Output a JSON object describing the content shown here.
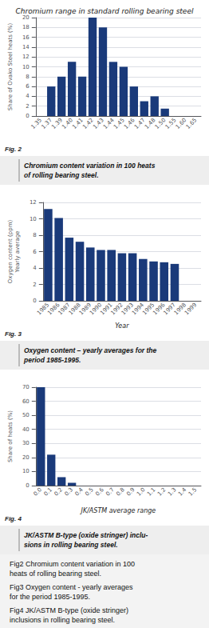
{
  "chart_data": [
    {
      "type": "bar",
      "title": "Chromium range in standard rolling bearing steel",
      "ylabel": "Share of Ovako Steel heats (%)",
      "categories": [
        "1.35",
        "1.37",
        "1.39",
        "1.40",
        "1.41",
        "1.42",
        "1.43",
        "1.44",
        "1.45",
        "1.46",
        "1.47",
        "1.48",
        "1.50",
        "1.55",
        "1.60",
        "1.65"
      ],
      "values": [
        0,
        6,
        8,
        11,
        8,
        20,
        18,
        11,
        10,
        6,
        3,
        4,
        1.5,
        0,
        0,
        0
      ],
      "color": "#1a3a7a",
      "ylim": [
        0,
        20
      ],
      "yticks": [
        0,
        2,
        4,
        6,
        8,
        10,
        12,
        14,
        16,
        18,
        20
      ],
      "grid": true,
      "annotations": [
        "Fig. 2",
        "Chromium content variation in 100 heats\nof rolling bearing steel.",
        "Fig2 Chromium content variation in 100\nheats of rolling bearing steel."
      ]
    },
    {
      "type": "bar",
      "ylabel": "Oxygen content (ppm)\nYearly average",
      "xlabel": "Year",
      "categories": [
        "1985",
        "1986",
        "1987",
        "1988",
        "1989",
        "1990",
        "1991",
        "1992",
        "1993",
        "1994",
        "1995",
        "1996",
        "1997",
        "1998",
        "1999"
      ],
      "values": [
        11.2,
        10.1,
        7.7,
        7.2,
        6.5,
        6.2,
        6.2,
        5.8,
        5.8,
        5.1,
        4.8,
        4.7,
        4.5,
        0,
        0
      ],
      "color": "#1a3a7a",
      "ylim": [
        0,
        12
      ],
      "yticks": [
        0,
        2,
        4,
        6,
        8,
        10,
        12
      ],
      "grid": true,
      "annotations": [
        "Fig. 3",
        "Oxygen content – yearly averages for the\nperiod 1985-1995.",
        "Fig3 Oxygen content - yearly averages\nfor the period 1985-1995."
      ]
    },
    {
      "type": "bar",
      "ylabel": "Share of heats (%)",
      "xlabel": "JK/ASTM average range",
      "categories": [
        "0.0",
        "0.1",
        "0.2",
        "0.3",
        "0.4",
        "0.5",
        "0.6",
        "0.7",
        "0.8",
        "0.9",
        "1.0",
        "1.1",
        "1.2",
        "1.3",
        "1.4",
        "1.5"
      ],
      "values": [
        70,
        22,
        6,
        2,
        0,
        0,
        0,
        0,
        0,
        0,
        0,
        0,
        0,
        0,
        0,
        0
      ],
      "color": "#1a3a7a",
      "ylim": [
        0,
        70
      ],
      "yticks": [
        0,
        10,
        20,
        30,
        40,
        50,
        60,
        70
      ],
      "grid": true,
      "annotations": [
        "Fig. 4",
        "JK/ASTM B-type (oxide stringer) inclu-\nsions in rolling bearing steel.",
        "Fig4 JK/ASTM B-type (oxide stringer)\ninclusions in rolling bearing steel."
      ]
    }
  ]
}
